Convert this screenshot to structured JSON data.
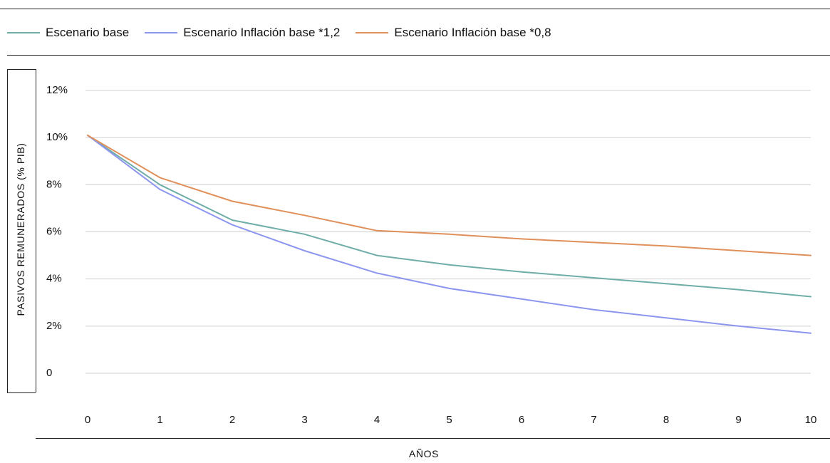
{
  "chart_data": {
    "type": "line",
    "x": [
      0,
      1,
      2,
      3,
      4,
      5,
      6,
      7,
      8,
      9,
      10
    ],
    "x_tick_labels": [
      "0",
      "1",
      "2",
      "3",
      "4",
      "5",
      "6",
      "7",
      "8",
      "9",
      "10"
    ],
    "y_tick_labels": [
      "0",
      "2%",
      "4%",
      "6%",
      "8%",
      "10%",
      "12%"
    ],
    "y_ticks": [
      0,
      2,
      4,
      6,
      8,
      10,
      12
    ],
    "ylim": [
      0,
      12
    ],
    "xlim": [
      0,
      10
    ],
    "xlabel": "AÑOS",
    "ylabel": "PASIVOS REMUNERADOS (% PIB)",
    "grid": true,
    "legend_position": "top",
    "series": [
      {
        "name": "Escenario base",
        "color": "#6fada8",
        "values": [
          10.1,
          8.0,
          6.5,
          5.9,
          5.0,
          4.6,
          4.3,
          4.05,
          3.8,
          3.55,
          3.25
        ]
      },
      {
        "name": "Escenario Inflación base *1,2",
        "color": "#8c96ee",
        "values": [
          10.1,
          7.8,
          6.3,
          5.2,
          4.25,
          3.6,
          3.15,
          2.7,
          2.35,
          2.0,
          1.7
        ]
      },
      {
        "name": "Escenario Inflación base *0,8",
        "color": "#e0905a",
        "values": [
          10.1,
          8.3,
          7.3,
          6.7,
          6.05,
          5.9,
          5.7,
          5.55,
          5.4,
          5.2,
          5.0
        ]
      }
    ]
  }
}
